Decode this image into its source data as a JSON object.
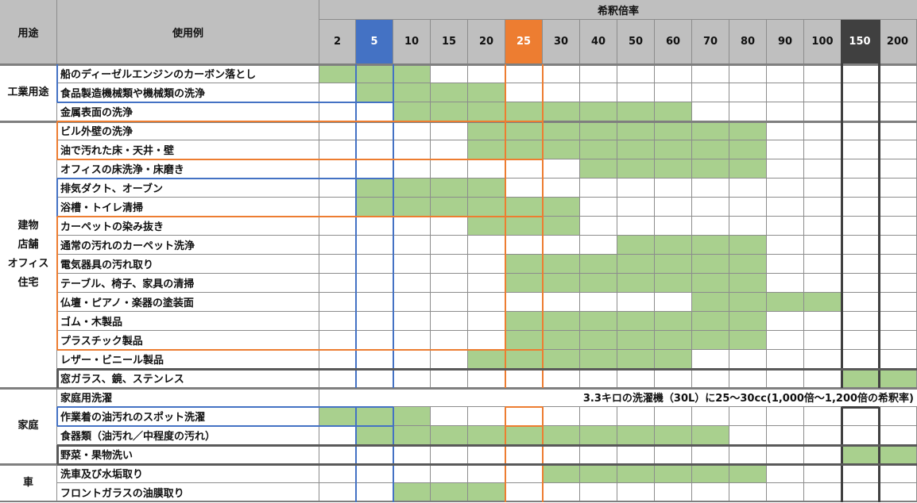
{
  "header": {
    "usage_label": "用途",
    "example_label": "使用例",
    "dilution_label": "希釈倍率",
    "ratios": [
      "2",
      "5",
      "10",
      "15",
      "20",
      "25",
      "30",
      "40",
      "50",
      "60",
      "70",
      "80",
      "90",
      "100",
      "150",
      "200"
    ],
    "highlight_colors": {
      "5": "#4472c4",
      "25": "#ed7d31",
      "150": "#404040"
    }
  },
  "colors": {
    "fill": "#a9d08e",
    "header_bg": "#bfbfbf",
    "blue": "#4472c4",
    "orange": "#ed7d31",
    "dark": "#404040"
  },
  "categories": [
    {
      "lines": [
        "工業用途"
      ],
      "rows": [
        0,
        2
      ]
    },
    {
      "lines": [
        "建物",
        "店舗",
        "オフィス",
        "住宅"
      ],
      "rows": [
        3,
        16
      ]
    },
    {
      "lines": [
        "家庭"
      ],
      "rows": [
        17,
        20
      ]
    },
    {
      "lines": [
        "車"
      ],
      "rows": [
        21,
        22
      ]
    }
  ],
  "rows": [
    {
      "label": "船のディーゼルエンジンのカーボン落とし",
      "filled": [
        "2",
        "5",
        "10"
      ]
    },
    {
      "label": "食品製造機械類や機械類の洗浄",
      "filled": [
        "5",
        "10",
        "15",
        "20"
      ]
    },
    {
      "label": "金属表面の洗浄",
      "filled": [
        "10",
        "15",
        "20",
        "25",
        "30",
        "40",
        "50",
        "60"
      ]
    },
    {
      "label": "ビル外壁の洗浄",
      "filled": [
        "20",
        "25",
        "30",
        "40",
        "50",
        "60",
        "70",
        "80"
      ]
    },
    {
      "label": "油で汚れた床・天井・壁",
      "filled": [
        "20",
        "25",
        "30",
        "40",
        "50",
        "60",
        "70",
        "80"
      ]
    },
    {
      "label": "オフィスの床洗浄・床磨き",
      "filled": [
        "40",
        "50",
        "60",
        "70",
        "80"
      ]
    },
    {
      "label": "排気ダクト、オーブン",
      "filled": [
        "5",
        "10",
        "15",
        "20"
      ]
    },
    {
      "label": "浴槽・トイレ清掃",
      "filled": [
        "5",
        "10",
        "15",
        "20",
        "25",
        "30"
      ]
    },
    {
      "label": "カーペットの染み抜き",
      "filled": [
        "20",
        "25",
        "30"
      ]
    },
    {
      "label": "通常の汚れのカーペット洗浄",
      "filled": [
        "50",
        "60",
        "70",
        "80"
      ]
    },
    {
      "label": "電気器具の汚れ取り",
      "filled": [
        "25",
        "30",
        "40",
        "50",
        "60",
        "70",
        "80"
      ]
    },
    {
      "label": "テーブル、椅子、家具の清掃",
      "filled": [
        "25",
        "30",
        "40",
        "50",
        "60",
        "70",
        "80"
      ]
    },
    {
      "label": "仏壇・ピアノ・楽器の塗装面",
      "filled": [
        "70",
        "80",
        "90",
        "100"
      ]
    },
    {
      "label": "ゴム・木製品",
      "filled": [
        "25",
        "30",
        "40",
        "50",
        "60",
        "70",
        "80"
      ]
    },
    {
      "label": "プラスチック製品",
      "filled": [
        "25",
        "30",
        "40",
        "50",
        "60",
        "70",
        "80"
      ]
    },
    {
      "label": "レザー・ビニール製品",
      "filled": [
        "20",
        "25",
        "30",
        "40",
        "50",
        "60"
      ]
    },
    {
      "label": "窓ガラス、鏡、ステンレス",
      "filled": [
        "150",
        "200"
      ]
    },
    {
      "label": "家庭用洗濯",
      "note": "3.3キロの洗濯機（30L）に25～30cc(1,000倍～1,200倍の希釈率)"
    },
    {
      "label": "作業着の油汚れのスポット洗濯",
      "filled": [
        "2",
        "5",
        "10"
      ]
    },
    {
      "label": "食器類（油汚れ／中程度の汚れ）",
      "filled": [
        "5",
        "10",
        "15",
        "20",
        "25",
        "30",
        "40",
        "50",
        "60",
        "70"
      ]
    },
    {
      "label": "野菜・果物洗い",
      "filled": [
        "150",
        "200"
      ]
    },
    {
      "label": "洗車及び水垢取り",
      "filled": [
        "30",
        "40",
        "50",
        "60",
        "70",
        "80"
      ]
    },
    {
      "label": "フロントガラスの油膜取り",
      "filled": [
        "10",
        "15",
        "20"
      ]
    }
  ]
}
